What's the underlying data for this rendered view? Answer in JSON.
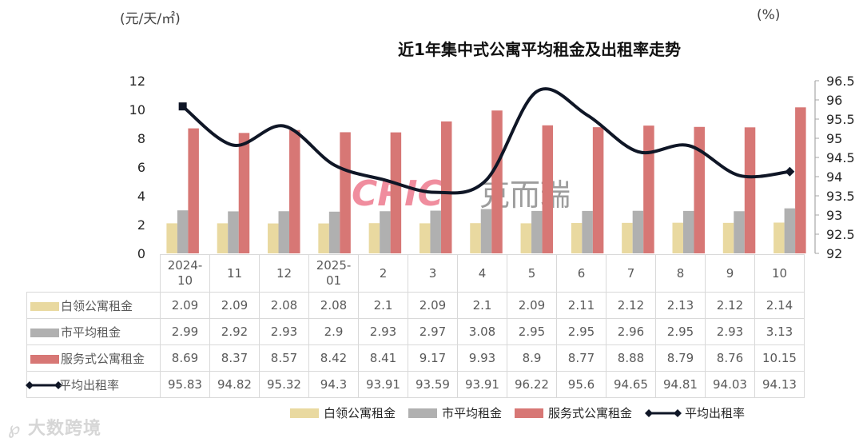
{
  "chart_data": {
    "type": "bar+line",
    "title": "近1年集中式公寓平均租金及出租率走势",
    "left_axis": {
      "label": "(元/天/㎡)",
      "range": [
        0,
        12
      ],
      "ticks": [
        "0",
        "2",
        "4",
        "6",
        "8",
        "10",
        "12"
      ]
    },
    "right_axis": {
      "label": "(%)",
      "range": [
        92,
        96.5
      ],
      "ticks": [
        "92",
        "92.5",
        "93",
        "93.5",
        "94",
        "94.5",
        "95",
        "95.5",
        "96",
        "96.5"
      ]
    },
    "categories": [
      "2024-10",
      "11",
      "12",
      "2025-01",
      "2",
      "3",
      "4",
      "5",
      "6",
      "7",
      "8",
      "9",
      "10"
    ],
    "series": [
      {
        "name": "白领公寓租金",
        "type": "bar",
        "axis": "left",
        "color": "#E9D9A0",
        "values": [
          2.09,
          2.09,
          2.08,
          2.08,
          2.1,
          2.09,
          2.1,
          2.09,
          2.11,
          2.12,
          2.13,
          2.12,
          2.14
        ]
      },
      {
        "name": "市平均租金",
        "type": "bar",
        "axis": "left",
        "color": "#B0B0B0",
        "values": [
          2.99,
          2.92,
          2.93,
          2.9,
          2.93,
          2.97,
          3.08,
          2.95,
          2.95,
          2.96,
          2.95,
          2.93,
          3.13
        ]
      },
      {
        "name": "服务式公寓租金",
        "type": "bar",
        "axis": "left",
        "color": "#D77775",
        "values": [
          8.69,
          8.37,
          8.57,
          8.42,
          8.41,
          9.17,
          9.93,
          8.9,
          8.77,
          8.88,
          8.79,
          8.76,
          10.15
        ]
      },
      {
        "name": "平均出租率",
        "type": "line",
        "axis": "right",
        "color": "#0F1626",
        "values": [
          95.83,
          94.82,
          95.32,
          94.3,
          93.91,
          93.59,
          93.91,
          96.22,
          95.6,
          94.65,
          94.81,
          94.03,
          94.13
        ]
      }
    ],
    "legend_position": "bottom",
    "grid": false
  },
  "header": {
    "left_unit": "(元/天/㎡)",
    "right_unit": "(%)",
    "title": "近1年集中式公寓平均租金及出租率走势"
  },
  "table": {
    "header_lines": [
      [
        "2024-",
        "10"
      ],
      [
        "11",
        ""
      ],
      [
        "12",
        ""
      ],
      [
        "2025-",
        "01"
      ],
      [
        "2",
        ""
      ],
      [
        "3",
        ""
      ],
      [
        "4",
        ""
      ],
      [
        "5",
        ""
      ],
      [
        "6",
        ""
      ],
      [
        "7",
        ""
      ],
      [
        "8",
        ""
      ],
      [
        "9",
        ""
      ],
      [
        "10",
        ""
      ]
    ],
    "rows": [
      {
        "label": "白领公寓租金",
        "cells": [
          "2.09",
          "2.09",
          "2.08",
          "2.08",
          "2.1",
          "2.09",
          "2.1",
          "2.09",
          "2.11",
          "2.12",
          "2.13",
          "2.12",
          "2.14"
        ]
      },
      {
        "label": "市平均租金",
        "cells": [
          "2.99",
          "2.92",
          "2.93",
          "2.9",
          "2.93",
          "2.97",
          "3.08",
          "2.95",
          "2.95",
          "2.96",
          "2.95",
          "2.93",
          "3.13"
        ]
      },
      {
        "label": "服务式公寓租金",
        "cells": [
          "8.69",
          "8.37",
          "8.57",
          "8.42",
          "8.41",
          "9.17",
          "9.93",
          "8.9",
          "8.77",
          "8.88",
          "8.79",
          "8.76",
          "10.15"
        ]
      },
      {
        "label": "平均出租率",
        "cells": [
          "95.83",
          "94.82",
          "95.32",
          "94.3",
          "93.91",
          "93.59",
          "93.91",
          "96.22",
          "95.6",
          "94.65",
          "94.81",
          "94.03",
          "94.13"
        ]
      }
    ]
  },
  "legend": {
    "items": [
      "白领公寓租金",
      "市平均租金",
      "服务式公寓租金",
      "平均出租率"
    ]
  },
  "watermarks": {
    "center_brand_latin": "CRIC",
    "center_brand_cn": "克而瑞",
    "corner": "大数跨境"
  }
}
